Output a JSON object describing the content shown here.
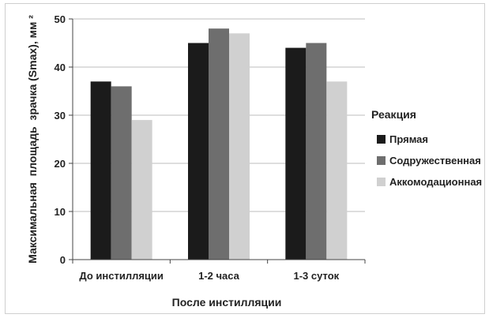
{
  "chart_data": {
    "type": "bar",
    "categories": [
      "До инстилляции",
      "1-2 часа",
      "1-3 суток"
    ],
    "series": [
      {
        "name": "Прямая",
        "values": [
          37,
          45,
          44
        ],
        "color": "#1b1b1b"
      },
      {
        "name": "Содружественная",
        "values": [
          36,
          48,
          45
        ],
        "color": "#6e6e6e"
      },
      {
        "name": "Аккомодационная",
        "values": [
          29,
          47,
          37
        ],
        "color": "#d0d0d0"
      }
    ],
    "title": "",
    "xlabel": "После инстилляции",
    "ylabel": "Максимальная  площадь  зрачка (Smax), мм ²",
    "ylim": [
      0,
      50
    ],
    "yticks": [
      "0",
      "10",
      "20",
      "30",
      "40",
      "50"
    ],
    "grid": true,
    "legend_title": "Реакция",
    "legend_position": "right"
  }
}
